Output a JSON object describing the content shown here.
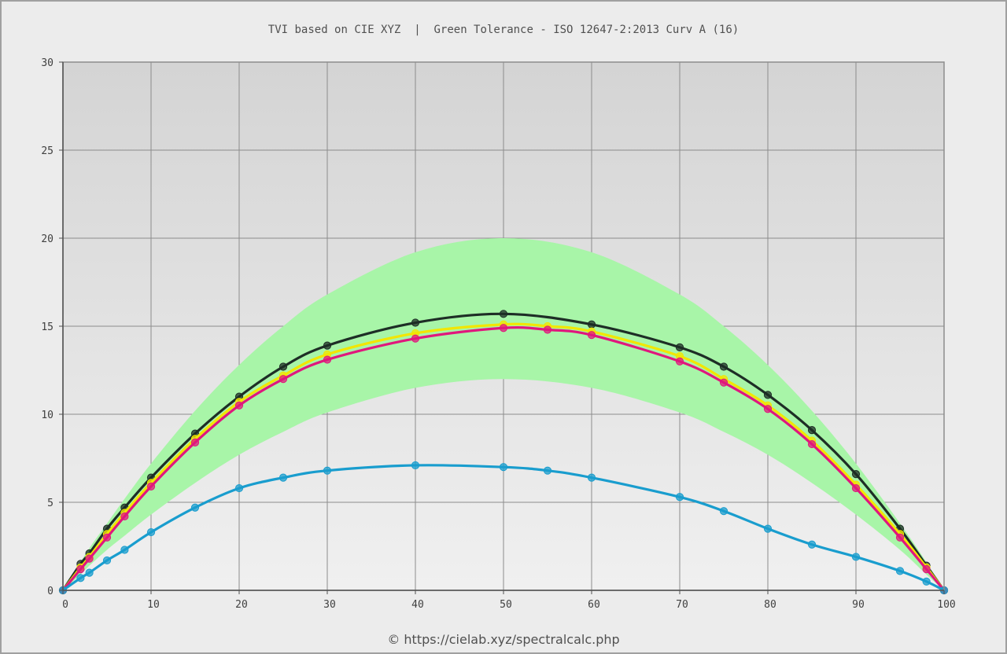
{
  "title": "TVI based on CIE XYZ  |  Green Tolerance - ISO 12647-2:2013 Curv A (16)",
  "credit": "© https://cielab.xyz/spectralcalc.php",
  "chart_data": {
    "type": "line",
    "title": "TVI based on CIE XYZ  |  Green Tolerance - ISO 12647-2:2013 Curv A (16)",
    "xlabel": "",
    "ylabel": "",
    "xlim": [
      0,
      100
    ],
    "ylim": [
      0,
      30
    ],
    "x_ticks": [
      "0",
      "10",
      "20",
      "30",
      "40",
      "50",
      "60",
      "70",
      "80",
      "90",
      "100"
    ],
    "y_ticks": [
      "0",
      "5",
      "10",
      "15",
      "20",
      "25",
      "30"
    ],
    "grid": true,
    "tolerance_band": {
      "color": "#a8f5a8",
      "x": [
        0,
        2,
        3,
        5,
        7,
        10,
        15,
        20,
        25,
        30,
        40,
        50,
        60,
        70,
        75,
        80,
        85,
        90,
        95,
        98,
        100
      ],
      "upper": [
        0,
        1.6,
        2.4,
        3.8,
        5.2,
        7.2,
        10.2,
        12.8,
        15.0,
        16.8,
        19.2,
        20.0,
        19.2,
        16.8,
        15.0,
        12.8,
        10.2,
        7.2,
        3.8,
        1.6,
        0
      ],
      "lower": [
        0,
        0.9,
        1.4,
        2.3,
        3.1,
        4.3,
        6.1,
        7.7,
        9.0,
        10.1,
        11.5,
        12.0,
        11.5,
        10.1,
        9.0,
        7.7,
        6.1,
        4.3,
        2.3,
        0.9,
        0
      ]
    },
    "series": [
      {
        "color": "#1e2e26",
        "x": [
          0,
          2,
          3,
          5,
          7,
          10,
          15,
          20,
          25,
          30,
          40,
          50,
          60,
          70,
          75,
          80,
          85,
          90,
          95,
          98,
          100
        ],
        "values": [
          0,
          1.5,
          2.1,
          3.5,
          4.7,
          6.4,
          8.9,
          11.0,
          12.7,
          13.9,
          15.2,
          15.7,
          15.1,
          13.8,
          12.7,
          11.1,
          9.1,
          6.6,
          3.5,
          1.4,
          0
        ]
      },
      {
        "color": "#f2e600",
        "x": [
          0,
          2,
          3,
          5,
          7,
          10,
          15,
          20,
          25,
          30,
          40,
          50,
          55,
          60,
          70,
          75,
          80,
          85,
          90,
          95,
          98,
          100
        ],
        "values": [
          0,
          1.3,
          1.9,
          3.2,
          4.4,
          6.1,
          8.6,
          10.7,
          12.2,
          13.4,
          14.6,
          15.1,
          15.0,
          14.7,
          13.3,
          12.0,
          10.5,
          8.5,
          6.0,
          3.2,
          1.3,
          0
        ]
      },
      {
        "color": "#e0177d",
        "x": [
          0,
          2,
          3,
          5,
          7,
          10,
          15,
          20,
          25,
          30,
          40,
          50,
          55,
          60,
          70,
          75,
          80,
          85,
          90,
          95,
          98,
          100
        ],
        "values": [
          0,
          1.2,
          1.8,
          3.0,
          4.2,
          5.9,
          8.4,
          10.5,
          12.0,
          13.1,
          14.3,
          14.9,
          14.8,
          14.5,
          13.0,
          11.8,
          10.3,
          8.3,
          5.8,
          3.0,
          1.2,
          0
        ]
      },
      {
        "color": "#199dce",
        "x": [
          0,
          2,
          3,
          5,
          7,
          10,
          15,
          20,
          25,
          30,
          40,
          50,
          55,
          60,
          70,
          75,
          80,
          85,
          90,
          95,
          98,
          100
        ],
        "values": [
          0,
          0.7,
          1.0,
          1.7,
          2.3,
          3.3,
          4.7,
          5.8,
          6.4,
          6.8,
          7.1,
          7.0,
          6.8,
          6.4,
          5.3,
          4.5,
          3.5,
          2.6,
          1.9,
          1.1,
          0.5,
          0
        ]
      }
    ]
  }
}
